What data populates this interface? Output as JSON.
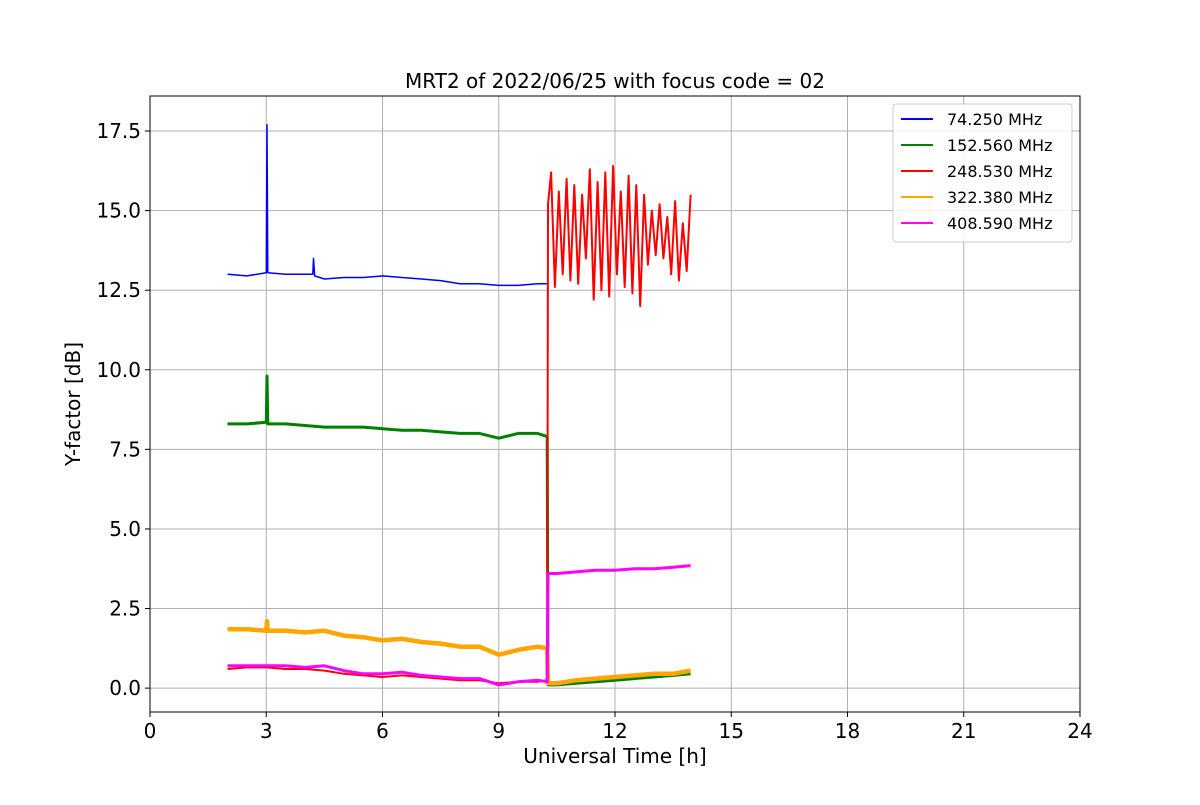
{
  "chart_data": {
    "type": "line",
    "title": "MRT2 of 2022/06/25 with focus code = 02",
    "xlabel": "Universal Time [h]",
    "ylabel": "Y-factor [dB]",
    "xlim": [
      0,
      24
    ],
    "ylim": [
      -0.75,
      18.6
    ],
    "x_ticks": [
      0,
      3,
      6,
      9,
      12,
      15,
      18,
      21,
      24
    ],
    "x_tick_labels": [
      "0",
      "3",
      "6",
      "9",
      "12",
      "15",
      "18",
      "21",
      "24"
    ],
    "y_ticks": [
      0.0,
      2.5,
      5.0,
      7.5,
      10.0,
      12.5,
      15.0,
      17.5
    ],
    "y_tick_labels": [
      "0.0",
      "2.5",
      "5.0",
      "7.5",
      "10.0",
      "12.5",
      "15.0",
      "17.5"
    ],
    "grid": true,
    "legend_position": "top-right",
    "series": [
      {
        "name": " 74.250 MHz",
        "color": "#0000ff",
        "x": [
          2.0,
          2.5,
          3.0,
          3.02,
          3.04,
          3.5,
          4.0,
          4.2,
          4.22,
          4.25,
          4.5,
          5.0,
          5.5,
          6.0,
          6.5,
          7.0,
          7.5,
          8.0,
          8.5,
          9.0,
          9.5,
          10.0,
          10.25
        ],
        "y": [
          13.0,
          12.95,
          13.05,
          17.7,
          13.05,
          13.0,
          13.0,
          13.0,
          13.5,
          12.95,
          12.85,
          12.9,
          12.9,
          12.95,
          12.9,
          12.85,
          12.8,
          12.7,
          12.7,
          12.65,
          12.65,
          12.7,
          12.7
        ]
      },
      {
        "name": "152.560 MHz",
        "color": "#008000",
        "x": [
          2.0,
          2.5,
          3.0,
          3.02,
          3.04,
          3.5,
          4.0,
          4.5,
          5.0,
          5.5,
          6.0,
          6.5,
          7.0,
          7.5,
          8.0,
          8.5,
          9.0,
          9.5,
          10.0,
          10.25,
          10.27,
          10.5,
          11.0,
          11.5,
          12.0,
          12.5,
          13.0,
          13.5,
          13.95
        ],
        "y": [
          8.3,
          8.3,
          8.35,
          9.8,
          8.3,
          8.3,
          8.25,
          8.2,
          8.2,
          8.2,
          8.15,
          8.1,
          8.1,
          8.05,
          8.0,
          8.0,
          7.85,
          8.0,
          8.0,
          7.9,
          0.1,
          0.1,
          0.15,
          0.2,
          0.25,
          0.3,
          0.35,
          0.4,
          0.45
        ]
      },
      {
        "name": "248.530 MHz",
        "color": "#ff0000",
        "x": [
          2.0,
          2.5,
          3.0,
          3.5,
          4.0,
          4.5,
          5.0,
          5.5,
          6.0,
          6.5,
          7.0,
          7.5,
          8.0,
          8.5,
          9.0,
          9.5,
          10.0,
          10.25,
          10.27,
          10.35,
          10.45,
          10.55,
          10.65,
          10.75,
          10.85,
          10.95,
          11.05,
          11.15,
          11.25,
          11.35,
          11.45,
          11.55,
          11.65,
          11.75,
          11.85,
          11.95,
          12.05,
          12.15,
          12.25,
          12.35,
          12.45,
          12.55,
          12.65,
          12.75,
          12.85,
          12.95,
          13.05,
          13.15,
          13.25,
          13.35,
          13.45,
          13.55,
          13.65,
          13.75,
          13.85,
          13.95
        ],
        "y": [
          0.6,
          0.65,
          0.65,
          0.6,
          0.6,
          0.55,
          0.45,
          0.4,
          0.35,
          0.4,
          0.35,
          0.3,
          0.25,
          0.25,
          0.15,
          0.2,
          0.2,
          0.25,
          15.2,
          16.2,
          12.6,
          15.6,
          13.0,
          16.0,
          12.8,
          15.8,
          12.7,
          15.5,
          13.5,
          16.3,
          12.2,
          15.9,
          12.5,
          16.2,
          12.3,
          16.4,
          13.0,
          15.6,
          12.6,
          16.1,
          12.4,
          15.8,
          12.0,
          15.5,
          13.3,
          15.0,
          13.6,
          15.2,
          13.5,
          14.8,
          13.0,
          15.3,
          12.8,
          14.6,
          13.1,
          15.5
        ]
      },
      {
        "name": "322.380 MHz",
        "color": "#ffa500",
        "x": [
          2.0,
          2.5,
          3.0,
          3.02,
          3.04,
          3.5,
          4.0,
          4.5,
          5.0,
          5.5,
          6.0,
          6.5,
          7.0,
          7.5,
          8.0,
          8.5,
          9.0,
          9.5,
          10.0,
          10.25,
          10.27,
          10.5,
          11.0,
          11.5,
          12.0,
          12.5,
          13.0,
          13.5,
          13.95
        ],
        "y": [
          1.85,
          1.85,
          1.8,
          2.1,
          1.8,
          1.8,
          1.75,
          1.8,
          1.65,
          1.6,
          1.5,
          1.55,
          1.45,
          1.4,
          1.3,
          1.3,
          1.05,
          1.2,
          1.3,
          1.25,
          0.15,
          0.15,
          0.25,
          0.3,
          0.35,
          0.4,
          0.45,
          0.45,
          0.55
        ]
      },
      {
        "name": "408.590 MHz",
        "color": "#ff00ff",
        "x": [
          2.0,
          2.5,
          3.0,
          3.5,
          4.0,
          4.5,
          5.0,
          5.5,
          6.0,
          6.5,
          7.0,
          7.5,
          8.0,
          8.5,
          9.0,
          9.5,
          10.0,
          10.25,
          10.27,
          10.5,
          11.0,
          11.5,
          12.0,
          12.5,
          13.0,
          13.5,
          13.95
        ],
        "y": [
          0.7,
          0.7,
          0.7,
          0.7,
          0.65,
          0.7,
          0.55,
          0.45,
          0.45,
          0.5,
          0.4,
          0.35,
          0.3,
          0.3,
          0.1,
          0.2,
          0.25,
          0.2,
          3.6,
          3.6,
          3.65,
          3.7,
          3.7,
          3.75,
          3.75,
          3.8,
          3.85
        ]
      }
    ]
  }
}
